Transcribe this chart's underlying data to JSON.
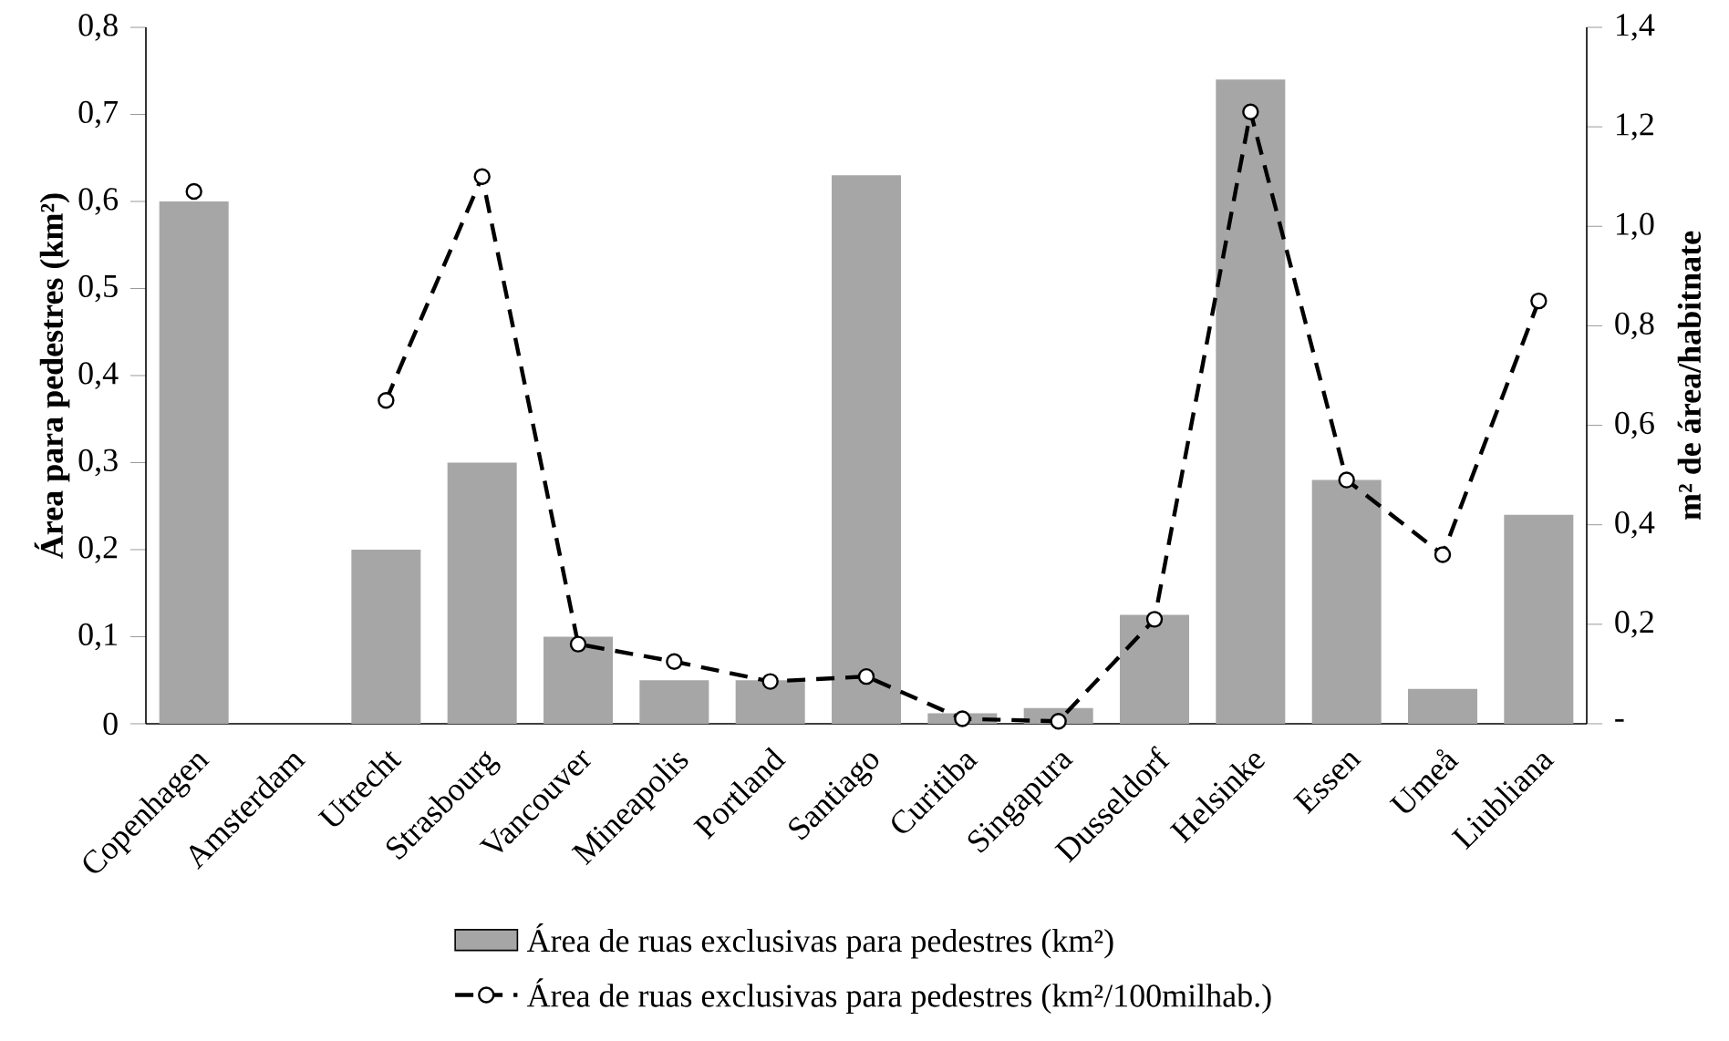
{
  "chart_data": {
    "type": "bar",
    "ylabel": "Área para pedestres (km²)",
    "y2label": "m² de área/habitnate",
    "categories": [
      "Copenhagen",
      "Amsterdam",
      "Utrecht",
      "Strasbourg",
      "Vancouver",
      "Mineapolis",
      "Portland",
      "Santiago",
      "Curitiba",
      "Singapura",
      "Dusseldorf",
      "Helsinke",
      "Essen",
      "Umeå",
      "Liubliana"
    ],
    "series": [
      {
        "name": "Área de ruas exclusivas para pedestres (km²)",
        "color": "#a6a6a6",
        "values": [
          0.6,
          0,
          0.2,
          0.3,
          0.1,
          0.05,
          0.05,
          0.63,
          0.012,
          0.018,
          0.125,
          0.74,
          0.28,
          0.04,
          0.24
        ]
      },
      {
        "name": "Área de ruas exclusivas para pedestres (km²/100milhab.)",
        "type": "line",
        "axis": "y2",
        "color": "#000000",
        "marker": "circle",
        "line_style": "dashed",
        "values": [
          1.07,
          null,
          0.65,
          1.1,
          0.16,
          0.125,
          0.085,
          0.095,
          0.01,
          0.005,
          0.21,
          1.23,
          0.49,
          0.34,
          0.85
        ]
      }
    ],
    "ylim": [
      0,
      0.8
    ],
    "yticks": [
      0,
      {
        "value": 0.1,
        "label": "0,1"
      },
      {
        "value": 0.2,
        "label": "0,2"
      },
      {
        "value": 0.3,
        "label": "0,3"
      },
      {
        "value": 0.4,
        "label": "0,4"
      },
      {
        "value": 0.5,
        "label": "0,5"
      },
      {
        "value": 0.6,
        "label": "0,6"
      },
      {
        "value": 0.7,
        "label": "0,7"
      },
      {
        "value": 0.8,
        "label": "0,8"
      }
    ],
    "y2lim": [
      0,
      1.4
    ],
    "y2ticks": [
      {
        "value": 0,
        "label": "-"
      },
      {
        "value": 0.2,
        "label": "0,2"
      },
      {
        "value": 0.4,
        "label": "0,4"
      },
      {
        "value": 0.6,
        "label": "0,6"
      },
      {
        "value": 0.8,
        "label": "0,8"
      },
      {
        "value": 1.0,
        "label": "1,0"
      },
      {
        "value": 1.2,
        "label": "1,2"
      },
      {
        "value": 1.4,
        "label": "1,4"
      }
    ],
    "legend": "bottom"
  }
}
